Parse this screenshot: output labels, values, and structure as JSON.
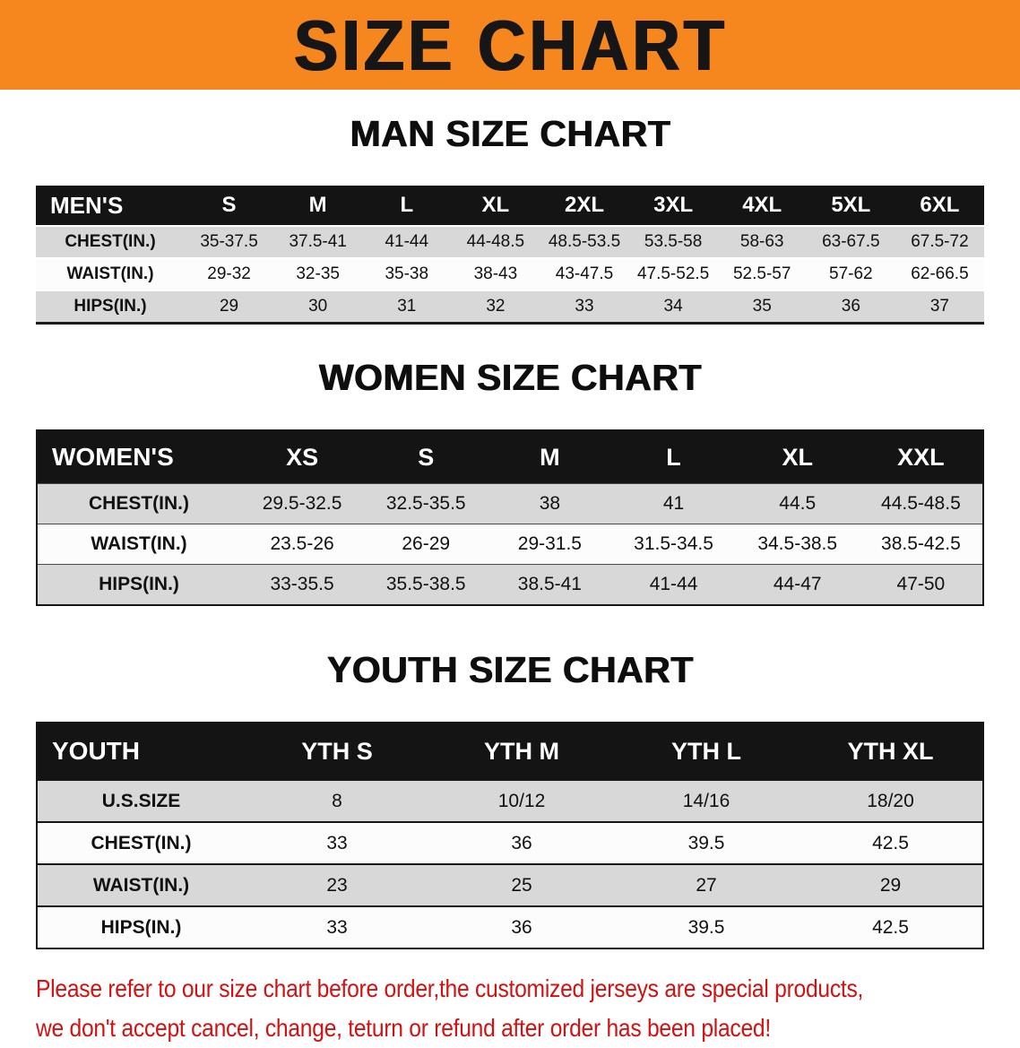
{
  "banner": {
    "title": "SIZE CHART"
  },
  "colors": {
    "banner_bg": "#f6871f",
    "banner_text": "#161616",
    "table_header_bg": "#141414",
    "row_shade": "#d8d8d8",
    "note_red": "#d01212"
  },
  "men": {
    "heading": "MAN SIZE CHART",
    "header": [
      "MEN'S",
      "S",
      "M",
      "L",
      "XL",
      "2XL",
      "3XL",
      "4XL",
      "5XL",
      "6XL"
    ],
    "rows": [
      {
        "label": "CHEST(IN.)",
        "values": [
          "35-37.5",
          "37.5-41",
          "41-44",
          "44-48.5",
          "48.5-53.5",
          "53.5-58",
          "58-63",
          "63-67.5",
          "67.5-72"
        ]
      },
      {
        "label": "WAIST(IN.)",
        "values": [
          "29-32",
          "32-35",
          "35-38",
          "38-43",
          "43-47.5",
          "47.5-52.5",
          "52.5-57",
          "57-62",
          "62-66.5"
        ]
      },
      {
        "label": "HIPS(IN.)",
        "values": [
          "29",
          "30",
          "31",
          "32",
          "33",
          "34",
          "35",
          "36",
          "37"
        ]
      }
    ]
  },
  "women": {
    "heading": "WOMEN SIZE CHART",
    "header": [
      "WOMEN'S",
      "XS",
      "S",
      "M",
      "L",
      "XL",
      "XXL"
    ],
    "rows": [
      {
        "label": "CHEST(IN.)",
        "values": [
          "29.5-32.5",
          "32.5-35.5",
          "38",
          "41",
          "44.5",
          "44.5-48.5"
        ]
      },
      {
        "label": "WAIST(IN.)",
        "values": [
          "23.5-26",
          "26-29",
          "29-31.5",
          "31.5-34.5",
          "34.5-38.5",
          "38.5-42.5"
        ]
      },
      {
        "label": "HIPS(IN.)",
        "values": [
          "33-35.5",
          "35.5-38.5",
          "38.5-41",
          "41-44",
          "44-47",
          "47-50"
        ]
      }
    ]
  },
  "youth": {
    "heading": "YOUTH SIZE CHART",
    "header": [
      "YOUTH",
      "YTH S",
      "YTH M",
      "YTH L",
      "YTH XL"
    ],
    "rows": [
      {
        "label": "U.S.SIZE",
        "values": [
          "8",
          "10/12",
          "14/16",
          "18/20"
        ]
      },
      {
        "label": "CHEST(IN.)",
        "values": [
          "33",
          "36",
          "39.5",
          "42.5"
        ]
      },
      {
        "label": "WAIST(IN.)",
        "values": [
          "23",
          "25",
          "27",
          "29"
        ]
      },
      {
        "label": "HIPS(IN.)",
        "values": [
          "33",
          "36",
          "39.5",
          "42.5"
        ]
      }
    ]
  },
  "footer": {
    "line1": "Please refer to our size chart before order,the customized jerseys are special products,",
    "line2": "we don't accept cancel, change, teturn or refund after order has been placed!"
  }
}
